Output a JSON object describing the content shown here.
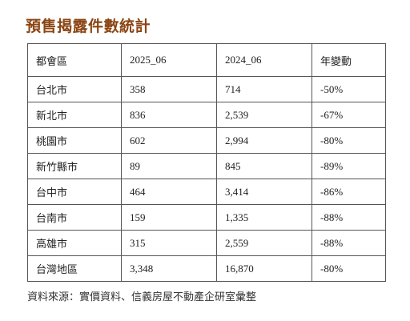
{
  "title": "預售揭露件數統計",
  "table": {
    "headers": [
      "都會區",
      "2025_06",
      "2024_06",
      "年變動"
    ],
    "rows": [
      [
        "台北市",
        "358",
        "714",
        "-50%"
      ],
      [
        "新北市",
        "836",
        "2,539",
        "-67%"
      ],
      [
        "桃園市",
        "602",
        "2,994",
        "-80%"
      ],
      [
        "新竹縣市",
        "89",
        "845",
        "-89%"
      ],
      [
        "台中市",
        "464",
        "3,414",
        "-86%"
      ],
      [
        "台南市",
        "159",
        "1,335",
        "-88%"
      ],
      [
        "高雄市",
        "315",
        "2,559",
        "-88%"
      ],
      [
        "台灣地區",
        "3,348",
        "16,870",
        "-80%"
      ]
    ]
  },
  "source": "資料來源：實價資料、信義房屋不動產企研室彙整",
  "colors": {
    "title": "#8B4513",
    "border": "#555555",
    "text": "#222222"
  }
}
